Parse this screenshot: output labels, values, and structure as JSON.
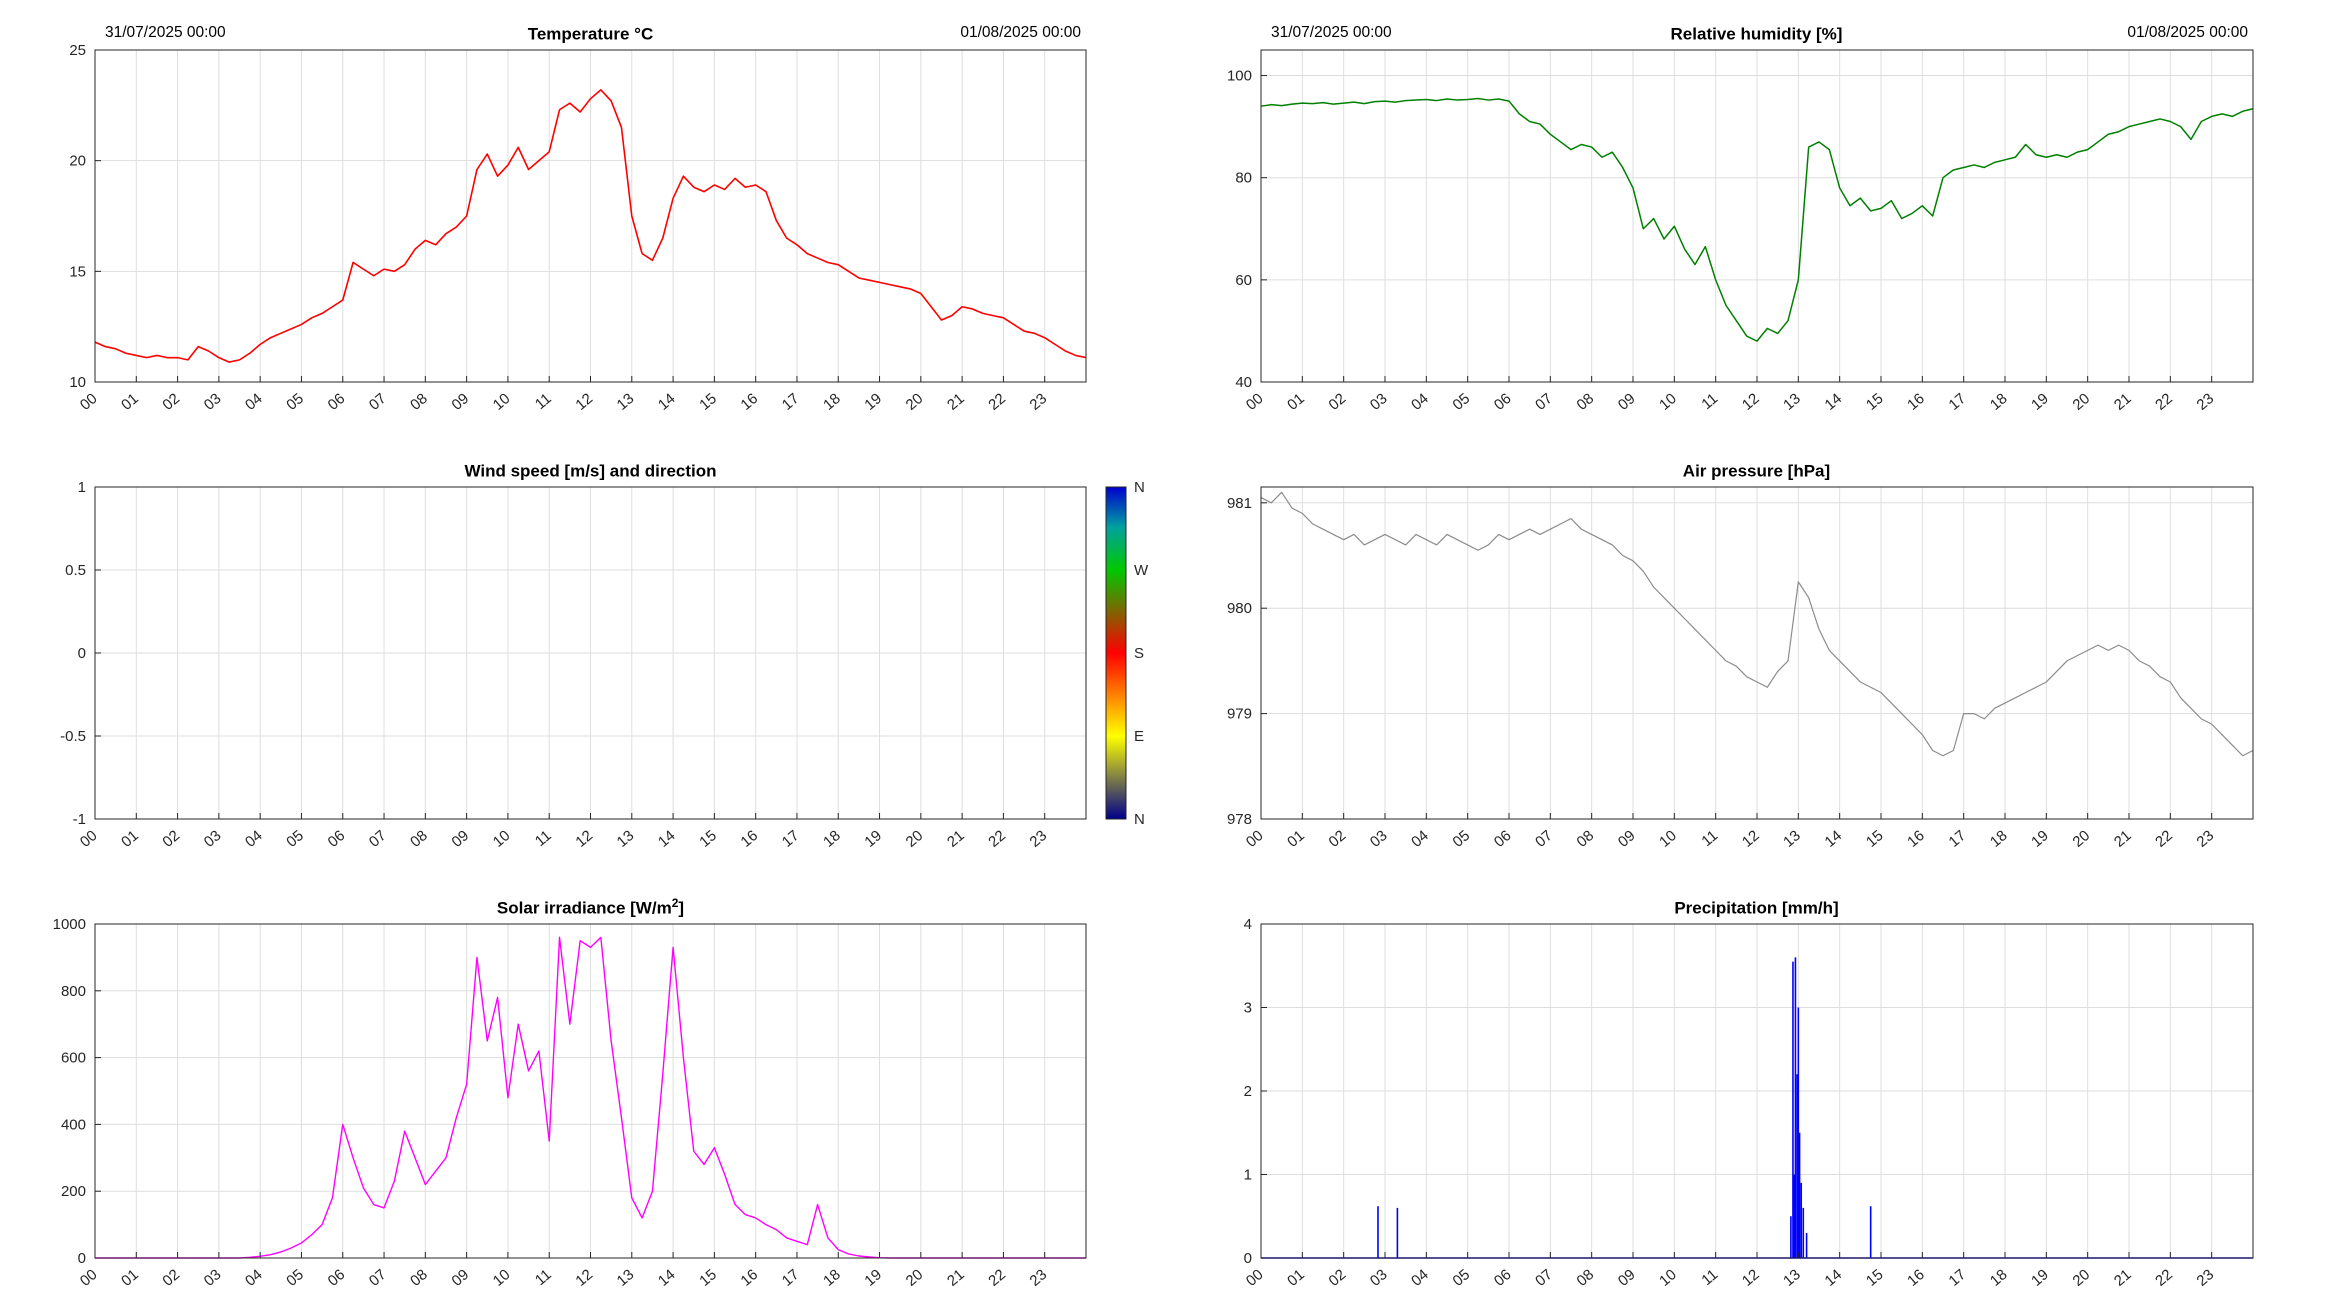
{
  "style": {
    "background": "#FFFFFF",
    "grid_color": "#DEDEDE",
    "axis_color": "#262626",
    "title_color": "#000000"
  },
  "xticks": {
    "labels": [
      "00",
      "01",
      "02",
      "03",
      "04",
      "05",
      "06",
      "07",
      "08",
      "09",
      "10",
      "11",
      "12",
      "13",
      "14",
      "15",
      "16",
      "17",
      "18",
      "19",
      "20",
      "21",
      "22",
      "23"
    ]
  },
  "chart_data": [
    {
      "id": "temperature",
      "type": "line",
      "title": "Temperature °C",
      "date_left": "31/07/2025 00:00",
      "date_right": "01/08/2025 00:00",
      "color": "#FF0000",
      "line_width": 1.6,
      "xlim": [
        0,
        24
      ],
      "ylim": [
        10,
        25
      ],
      "yticks": [
        10,
        15,
        20,
        25
      ],
      "t_step_h": 0.25,
      "values": [
        11.8,
        11.6,
        11.5,
        11.3,
        11.2,
        11.1,
        11.2,
        11.1,
        11.1,
        11.0,
        11.6,
        11.4,
        11.1,
        10.9,
        11.0,
        11.3,
        11.7,
        12.0,
        12.2,
        12.4,
        12.6,
        12.9,
        13.1,
        13.4,
        13.7,
        15.4,
        15.1,
        14.8,
        15.1,
        15.0,
        15.3,
        16.0,
        16.4,
        16.2,
        16.7,
        17.0,
        17.5,
        19.6,
        20.3,
        19.3,
        19.8,
        20.6,
        19.6,
        20.0,
        20.4,
        22.3,
        22.6,
        22.2,
        22.8,
        23.2,
        22.7,
        21.5,
        17.5,
        15.8,
        15.5,
        16.5,
        18.3,
        19.3,
        18.8,
        18.6,
        18.9,
        18.7,
        19.2,
        18.8,
        18.9,
        18.6,
        17.3,
        16.5,
        16.2,
        15.8,
        15.6,
        15.4,
        15.3,
        15.0,
        14.7,
        14.6,
        14.5,
        14.4,
        14.3,
        14.2,
        14.0,
        13.4,
        12.8,
        13.0,
        13.4,
        13.3,
        13.1,
        13.0,
        12.9,
        12.6,
        12.3,
        12.2,
        12.0,
        11.7,
        11.4,
        11.2,
        11.1
      ]
    },
    {
      "id": "humidity",
      "type": "line",
      "title": "Relative humidity [%]",
      "date_left": "31/07/2025 00:00",
      "date_right": "01/08/2025 00:00",
      "color": "#008000",
      "line_width": 1.5,
      "xlim": [
        0,
        24
      ],
      "ylim": [
        40,
        105
      ],
      "yticks": [
        40,
        60,
        80,
        100
      ],
      "t_step_h": 0.25,
      "values": [
        94.0,
        94.3,
        94.1,
        94.4,
        94.6,
        94.5,
        94.7,
        94.4,
        94.6,
        94.8,
        94.5,
        94.9,
        95.0,
        94.8,
        95.1,
        95.2,
        95.3,
        95.1,
        95.4,
        95.2,
        95.3,
        95.5,
        95.2,
        95.4,
        95.0,
        92.5,
        91.0,
        90.5,
        88.5,
        87.0,
        85.5,
        86.5,
        86.0,
        84.0,
        85.0,
        82.0,
        78.0,
        70.0,
        72.0,
        68.0,
        70.5,
        66.0,
        63.0,
        66.5,
        60.0,
        55.0,
        52.0,
        49.0,
        48.0,
        50.5,
        49.5,
        52.0,
        60.0,
        86.0,
        87.0,
        85.5,
        78.0,
        74.5,
        76.0,
        73.5,
        74.0,
        75.5,
        72.0,
        73.0,
        74.5,
        72.5,
        80.0,
        81.5,
        82.0,
        82.5,
        82.0,
        83.0,
        83.5,
        84.0,
        86.5,
        84.5,
        84.0,
        84.5,
        84.0,
        85.0,
        85.5,
        87.0,
        88.5,
        89.0,
        90.0,
        90.5,
        91.0,
        91.5,
        91.0,
        90.0,
        87.5,
        91.0,
        92.0,
        92.5,
        92.0,
        93.0,
        93.5
      ]
    },
    {
      "id": "wind",
      "type": "empty",
      "title": "Wind speed [m/s] and direction",
      "xlim": [
        0,
        24
      ],
      "ylim": [
        -1,
        1
      ],
      "yticks": [
        -1,
        -0.5,
        0,
        0.5,
        1
      ],
      "colorbar": {
        "labels": [
          "N",
          "W",
          "S",
          "E",
          "N"
        ],
        "stops": [
          {
            "offset": 0,
            "color": "#0000CD"
          },
          {
            "offset": 0.12,
            "color": "#00A0A0"
          },
          {
            "offset": 0.25,
            "color": "#00C800"
          },
          {
            "offset": 0.5,
            "color": "#FF0000"
          },
          {
            "offset": 0.625,
            "color": "#FF8000"
          },
          {
            "offset": 0.75,
            "color": "#FFFF00"
          },
          {
            "offset": 1,
            "color": "#00008B"
          }
        ]
      }
    },
    {
      "id": "pressure",
      "type": "line",
      "title": "Air pressure [hPa]",
      "color": "#8C8C8C",
      "line_width": 1.2,
      "xlim": [
        0,
        24
      ],
      "ylim": [
        978,
        981.15
      ],
      "yticks": [
        978,
        979,
        980,
        981
      ],
      "t_step_h": 0.25,
      "values": [
        981.05,
        981.0,
        981.1,
        980.95,
        980.9,
        980.8,
        980.75,
        980.7,
        980.65,
        980.7,
        980.6,
        980.65,
        980.7,
        980.65,
        980.6,
        980.7,
        980.65,
        980.6,
        980.7,
        980.65,
        980.6,
        980.55,
        980.6,
        980.7,
        980.65,
        980.7,
        980.75,
        980.7,
        980.75,
        980.8,
        980.85,
        980.75,
        980.7,
        980.65,
        980.6,
        980.5,
        980.45,
        980.35,
        980.2,
        980.1,
        980.0,
        979.9,
        979.8,
        979.7,
        979.6,
        979.5,
        979.45,
        979.35,
        979.3,
        979.25,
        979.4,
        979.5,
        980.25,
        980.1,
        979.8,
        979.6,
        979.5,
        979.4,
        979.3,
        979.25,
        979.2,
        979.1,
        979.0,
        978.9,
        978.8,
        978.65,
        978.6,
        978.65,
        979.0,
        979.0,
        978.95,
        979.05,
        979.1,
        979.15,
        979.2,
        979.25,
        979.3,
        979.4,
        979.5,
        979.55,
        979.6,
        979.65,
        979.6,
        979.65,
        979.6,
        979.5,
        979.45,
        979.35,
        979.3,
        979.15,
        979.05,
        978.95,
        978.9,
        978.8,
        978.7,
        978.6,
        978.65
      ]
    },
    {
      "id": "solar",
      "type": "line",
      "title": "Solar irradiance [W/m",
      "title_sup": "2",
      "title_tail": "]",
      "color": "#FF00FF",
      "line_width": 1.4,
      "xlim": [
        0,
        24
      ],
      "ylim": [
        0,
        1000
      ],
      "yticks": [
        0,
        200,
        400,
        600,
        800,
        1000
      ],
      "t_step_h": 0.25,
      "values": [
        0,
        0,
        0,
        0,
        0,
        0,
        0,
        0,
        0,
        0,
        0,
        0,
        0,
        0,
        0,
        2,
        5,
        10,
        18,
        30,
        45,
        70,
        100,
        180,
        400,
        300,
        210,
        160,
        150,
        230,
        380,
        300,
        220,
        260,
        300,
        420,
        520,
        900,
        650,
        780,
        480,
        700,
        560,
        620,
        350,
        960,
        700,
        950,
        930,
        960,
        650,
        420,
        180,
        120,
        200,
        550,
        930,
        600,
        320,
        280,
        330,
        250,
        160,
        130,
        120,
        100,
        85,
        60,
        50,
        40,
        160,
        60,
        25,
        12,
        6,
        3,
        1,
        0,
        0,
        0,
        0,
        0,
        0,
        0,
        0,
        0,
        0,
        0,
        0,
        0,
        0,
        0,
        0,
        0,
        0,
        0,
        0
      ]
    },
    {
      "id": "precipitation",
      "type": "spikes",
      "title": "Precipitation [mm/h]",
      "color": "#0000FF",
      "line_width": 1.5,
      "xlim": [
        0,
        24
      ],
      "ylim": [
        0,
        4
      ],
      "yticks": [
        0,
        1,
        2,
        3,
        4
      ],
      "spikes": [
        {
          "t": 2.83,
          "v": 0.62
        },
        {
          "t": 3.3,
          "v": 0.6
        },
        {
          "t": 12.82,
          "v": 0.5
        },
        {
          "t": 12.87,
          "v": 3.55
        },
        {
          "t": 12.9,
          "v": 1.0
        },
        {
          "t": 12.93,
          "v": 3.6
        },
        {
          "t": 12.97,
          "v": 2.2
        },
        {
          "t": 13.0,
          "v": 3.0
        },
        {
          "t": 13.03,
          "v": 1.5
        },
        {
          "t": 13.07,
          "v": 0.9
        },
        {
          "t": 13.12,
          "v": 0.6
        },
        {
          "t": 13.2,
          "v": 0.3
        },
        {
          "t": 14.75,
          "v": 0.62
        }
      ]
    }
  ]
}
